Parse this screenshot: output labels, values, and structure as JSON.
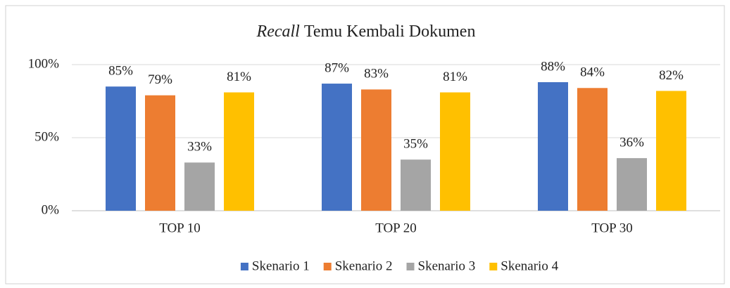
{
  "chart_data": {
    "type": "bar",
    "title": [
      "Recall",
      "Temu Kembali Dokumen"
    ],
    "categories": [
      "TOP 10",
      "TOP 20",
      "TOP 30"
    ],
    "series": [
      {
        "name": "Skenario 1",
        "color": "#4472c4",
        "values": [
          85,
          87,
          88
        ],
        "value_labels": [
          "85%",
          "87%",
          "88%"
        ]
      },
      {
        "name": "Skenario 2",
        "color": "#ed7d31",
        "values": [
          79,
          83,
          84
        ],
        "value_labels": [
          "79%",
          "83%",
          "84%"
        ]
      },
      {
        "name": "Skenario 3",
        "color": "#a5a5a5",
        "values": [
          33,
          35,
          36
        ],
        "value_labels": [
          "33%",
          "35%",
          "36%"
        ]
      },
      {
        "name": "Skenario 4",
        "color": "#ffc000",
        "values": [
          81,
          81,
          82
        ],
        "value_labels": [
          "81%",
          "81%",
          "82%"
        ]
      }
    ],
    "ylim": [
      0,
      100
    ],
    "yticks": [
      {
        "value": 0,
        "label": "0%"
      },
      {
        "value": 50,
        "label": "50%"
      },
      {
        "value": 100,
        "label": "100%"
      }
    ],
    "grid": true,
    "legend": "bottom"
  }
}
